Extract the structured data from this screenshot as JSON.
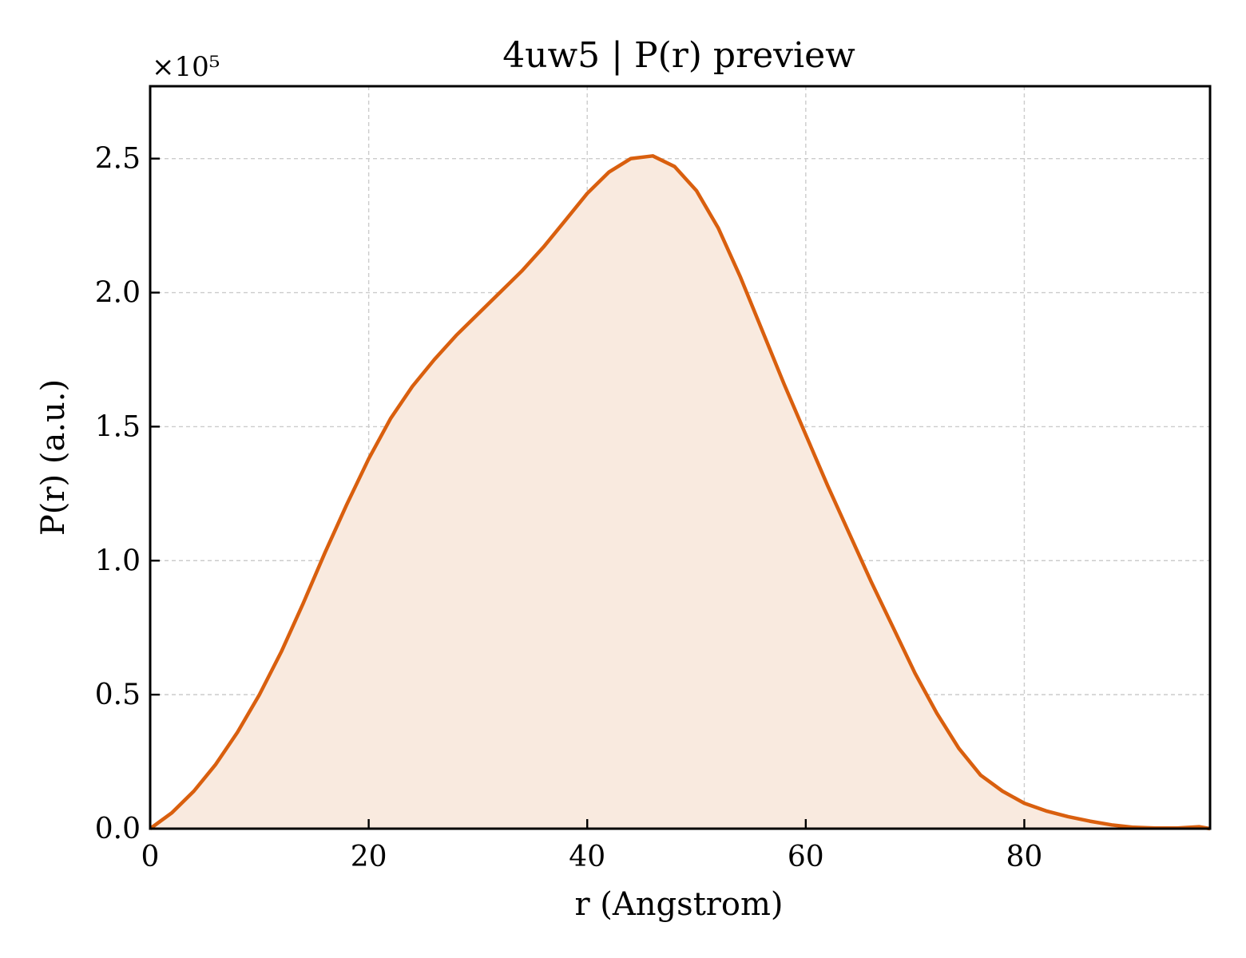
{
  "chart_data": {
    "type": "line",
    "title": "4uw5 | P(r) preview",
    "xlabel": "r (Angstrom)",
    "ylabel": "P(r) (a.u.)",
    "y_multiplier": "×10⁵",
    "xlim": [
      0,
      97
    ],
    "ylim": [
      0,
      2.77
    ],
    "xticks": [
      0,
      20,
      40,
      60,
      80
    ],
    "yticks": [
      0.0,
      0.5,
      1.0,
      1.5,
      2.0,
      2.5
    ],
    "grid": true,
    "tick_direction": "in",
    "colors": {
      "line": "#d95f0e",
      "fill": "#f9eadf"
    },
    "series": [
      {
        "x": [
          0,
          2,
          4,
          6,
          8,
          10,
          12,
          14,
          16,
          18,
          20,
          22,
          24,
          26,
          28,
          30,
          32,
          34,
          36,
          38,
          40,
          42,
          44,
          46,
          48,
          50,
          52,
          54,
          56,
          58,
          60,
          62,
          64,
          66,
          68,
          70,
          72,
          74,
          76,
          78,
          80,
          82,
          84,
          86,
          88,
          90,
          92,
          94,
          96,
          97
        ],
        "y": [
          0.0,
          0.06,
          0.14,
          0.24,
          0.36,
          0.5,
          0.66,
          0.84,
          1.03,
          1.21,
          1.38,
          1.53,
          1.65,
          1.75,
          1.84,
          1.92,
          2.0,
          2.08,
          2.17,
          2.27,
          2.37,
          2.45,
          2.5,
          2.51,
          2.47,
          2.38,
          2.24,
          2.06,
          1.86,
          1.66,
          1.47,
          1.28,
          1.1,
          0.92,
          0.75,
          0.58,
          0.43,
          0.3,
          0.2,
          0.14,
          0.095,
          0.066,
          0.045,
          0.028,
          0.014,
          0.005,
          0.002,
          0.002,
          0.007,
          0.0
        ]
      }
    ]
  }
}
